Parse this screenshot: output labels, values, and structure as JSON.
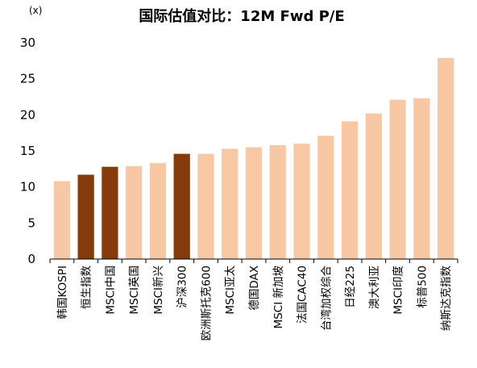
{
  "chart_data": {
    "type": "bar",
    "title": "国际估值对比：12M Fwd P/E",
    "unit_label": "(x)",
    "ylim": [
      0,
      30
    ],
    "yticks": [
      "0",
      "5",
      "10",
      "15",
      "20",
      "25",
      "30"
    ],
    "categories": [
      "韩国KOSPI",
      "恒生指数",
      "MSCI中国",
      "MSCI英国",
      "MSCI新兴",
      "沪深300",
      "欧洲斯托克600",
      "MSCI亚太",
      "德国DAX",
      "MSCI 新加坡",
      "法国CAC40",
      "台湾加权综合",
      "日经225",
      "澳大利亚",
      "MSCI印度",
      "标普500",
      "纳斯达克指数"
    ],
    "values": [
      10.8,
      11.7,
      12.8,
      12.9,
      13.3,
      14.6,
      14.6,
      15.3,
      15.5,
      15.8,
      16.0,
      17.1,
      19.1,
      20.2,
      22.1,
      22.3,
      27.9
    ],
    "highlighted": [
      false,
      true,
      true,
      false,
      false,
      true,
      false,
      false,
      false,
      false,
      false,
      false,
      false,
      false,
      false,
      false,
      false
    ],
    "colors": {
      "normal": "#F8C8A4",
      "highlight": "#843C0C",
      "axis": "#000000"
    },
    "grid": false,
    "legend": "none"
  }
}
